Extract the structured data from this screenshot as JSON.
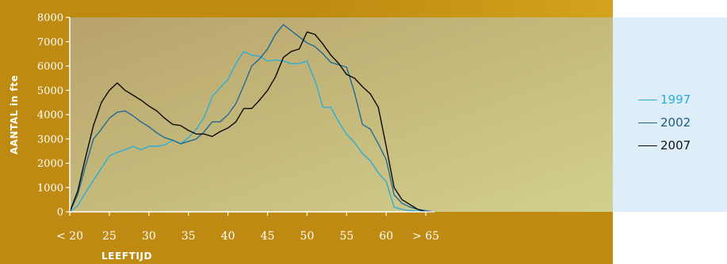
{
  "chart_data": {
    "type": "line",
    "title": "",
    "xlabel": "LEEFTIJD",
    "ylabel": "AANTAL in fte",
    "ylim": [
      0,
      8000
    ],
    "y_ticks": [
      "0",
      "1000",
      "2000",
      "3000",
      "4000",
      "5000",
      "6000",
      "7000",
      "8000"
    ],
    "x_tick_labels": [
      "< 20",
      "25",
      "30",
      "35",
      "40",
      "45",
      "50",
      "55",
      "60",
      "> 65"
    ],
    "x_tick_positions": [
      20,
      25,
      30,
      35,
      40,
      45,
      50,
      55,
      60,
      65
    ],
    "x": [
      20,
      21,
      22,
      23,
      24,
      25,
      26,
      27,
      28,
      29,
      30,
      31,
      32,
      33,
      34,
      35,
      36,
      37,
      38,
      39,
      40,
      41,
      42,
      43,
      44,
      45,
      46,
      47,
      48,
      49,
      50,
      51,
      52,
      53,
      54,
      55,
      56,
      57,
      58,
      59,
      60,
      61,
      62,
      63,
      64,
      65,
      66
    ],
    "series": [
      {
        "name": "1997",
        "color": "#2aaed8",
        "values": [
          0,
          250,
          800,
          1300,
          1800,
          2300,
          2450,
          2550,
          2700,
          2550,
          2700,
          2700,
          2750,
          2950,
          2800,
          3050,
          3400,
          3900,
          4750,
          5100,
          5450,
          6100,
          6600,
          6450,
          6400,
          6200,
          6250,
          6200,
          6100,
          6100,
          6200,
          5400,
          4300,
          4300,
          3700,
          3200,
          2850,
          2400,
          2100,
          1600,
          1250,
          200,
          100,
          50,
          30,
          10,
          0
        ]
      },
      {
        "name": "2002",
        "color": "#1f6b9a",
        "values": [
          0,
          700,
          1900,
          3000,
          3400,
          3850,
          4100,
          4150,
          3950,
          3700,
          3500,
          3250,
          3050,
          2950,
          2800,
          2900,
          3000,
          3300,
          3700,
          3700,
          4000,
          4450,
          5200,
          6000,
          6300,
          6700,
          7300,
          7700,
          7450,
          7200,
          6950,
          6800,
          6500,
          6150,
          6050,
          5950,
          4900,
          3600,
          3400,
          2800,
          2150,
          700,
          350,
          200,
          100,
          50,
          0
        ]
      },
      {
        "name": "2007",
        "color": "#0a0a0a",
        "values": [
          0,
          850,
          2250,
          3550,
          4500,
          5000,
          5300,
          5000,
          4800,
          4600,
          4350,
          4150,
          3850,
          3600,
          3550,
          3350,
          3200,
          3200,
          3100,
          3300,
          3450,
          3700,
          4250,
          4250,
          4600,
          5000,
          5550,
          6350,
          6600,
          6700,
          7400,
          7300,
          6900,
          6450,
          6100,
          5650,
          5500,
          5150,
          4850,
          4300,
          2700,
          1000,
          500,
          300,
          100,
          0,
          0
        ]
      }
    ],
    "legend_position": "right",
    "grid": false
  }
}
